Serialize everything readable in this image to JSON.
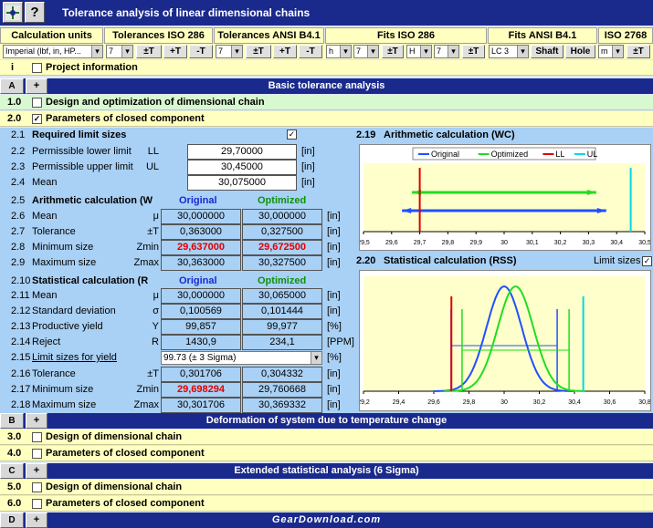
{
  "app": {
    "title": "Tolerance analysis of linear dimensional chains"
  },
  "toolbar": {
    "tabs": [
      "Calculation units",
      "Tolerances ISO 286",
      "Tolerances ANSI B4.1",
      "Fits ISO 286",
      "Fits ANSI B4.1",
      "ISO 2768"
    ],
    "units_value": "Imperial (lbf, in, HP...",
    "iso_grade": "7",
    "ansi_grade": "7",
    "fit_h": "h",
    "fit_7a": "7",
    "fit_H": "H",
    "fit_7b": "7",
    "lc": "LC 3",
    "iso2768": "m",
    "pmT": "±T",
    "plusT": "+T",
    "minusT": "-T",
    "shaft": "Shaft",
    "hole": "Hole"
  },
  "sections": {
    "i_label": "i",
    "project": "Project information",
    "A": "A",
    "A_title": "Basic tolerance analysis",
    "g10_num": "1.0",
    "g10": "Design and optimization of dimensional chain",
    "g20_num": "2.0",
    "g20": "Parameters of closed component",
    "B": "B",
    "B_title": "Deformation of system due to temperature change",
    "g30_num": "3.0",
    "g30": "Design of dimensional chain",
    "g40_num": "4.0",
    "g40": "Parameters of closed component",
    "C": "C",
    "C_title": "Extended statistical analysis (6 Sigma)",
    "g50_num": "5.0",
    "g50": "Design of dimensional chain",
    "g60_num": "6.0",
    "g60": "Parameters of closed component",
    "D": "D",
    "plus": "+",
    "watermark": "GearDownload.com"
  },
  "limits": {
    "head_num": "2.1",
    "head": "Required limit sizes",
    "rows": [
      {
        "n": "2.2",
        "d": "Permissible lower limit",
        "s": "LL",
        "v": "29,70000",
        "u": "[in]"
      },
      {
        "n": "2.3",
        "d": "Permissible upper limit",
        "s": "UL",
        "v": "30,45000",
        "u": "[in]"
      },
      {
        "n": "2.4",
        "d": "Mean",
        "s": "",
        "v": "30,075000",
        "u": "[in]"
      }
    ]
  },
  "arith": {
    "head_num": "2.5",
    "head": "Arithmetic calculation (W",
    "orig": "Original",
    "opt": "Optimized",
    "rows": [
      {
        "n": "2.6",
        "d": "Mean",
        "s": "μ",
        "a": "30,000000",
        "b": "30,000000",
        "u": "[in]"
      },
      {
        "n": "2.7",
        "d": "Tolerance",
        "s": "±T",
        "a": "0,363000",
        "b": "0,327500",
        "u": "[in]"
      },
      {
        "n": "2.8",
        "d": "Minimum size",
        "s": "Zmin",
        "a": "29,637000",
        "b": "29,672500",
        "u": "[in]"
      },
      {
        "n": "2.9",
        "d": "Maximum size",
        "s": "Zmax",
        "a": "30,363000",
        "b": "30,327500",
        "u": "[in]"
      }
    ]
  },
  "stat": {
    "head_num": "2.10",
    "head": "Statistical calculation (R",
    "orig": "Original",
    "opt": "Optimized",
    "rows": [
      {
        "n": "2.11",
        "d": "Mean",
        "s": "μ",
        "a": "30,000000",
        "b": "30,065000",
        "u": "[in]"
      },
      {
        "n": "2.12",
        "d": "Standard deviation",
        "s": "σ",
        "a": "0,100569",
        "b": "0,101444",
        "u": "[in]"
      },
      {
        "n": "2.13",
        "d": "Productive yield",
        "s": "Y",
        "a": "99,857",
        "b": "99,977",
        "u": "[%]"
      },
      {
        "n": "2.14",
        "d": "Reject",
        "s": "R",
        "a": "1430,9",
        "b": "234,1",
        "u": "[PPM]"
      }
    ],
    "yield_num": "2.15",
    "yield_label": "Limit sizes for yield",
    "yield_value": "99.73  (± 3 Sigma)",
    "yield_unit": "[%]",
    "rows2": [
      {
        "n": "2.16",
        "d": "Tolerance",
        "s": "±T",
        "a": "0,301706",
        "b": "0,304332",
        "u": "[in]"
      },
      {
        "n": "2.17",
        "d": "Minimum size",
        "s": "Zmin",
        "a": "29,698294",
        "b": "29,760668",
        "u": "[in]"
      },
      {
        "n": "2.18",
        "d": "Maximum size",
        "s": "Zmax",
        "a": "30,301706",
        "b": "30,369332",
        "u": "[in]"
      }
    ]
  },
  "chart_data": [
    {
      "type": "line",
      "num": "2.19",
      "title": "Arithmetic calculation (WC)",
      "legend": [
        "Original",
        "Optimized",
        "LL",
        "UL"
      ],
      "colors": {
        "Original": "#2050ff",
        "Optimized": "#20dd20",
        "LL": "#e00000",
        "UL": "#00d8e8"
      },
      "xlim": [
        29.5,
        30.5
      ],
      "ticks": [
        "29,5",
        "29,6",
        "29,7",
        "29,8",
        "29,9",
        "30",
        "30,1",
        "30,2",
        "30,3",
        "30,4",
        "30,5"
      ],
      "series": [
        {
          "name": "Original",
          "range": [
            29.637,
            30.363
          ]
        },
        {
          "name": "Optimized",
          "range": [
            29.6725,
            30.3275
          ]
        }
      ],
      "LL": 29.7,
      "UL": 30.45
    },
    {
      "type": "line",
      "num": "2.20",
      "title": "Statistical calculation (RSS)",
      "limit_label": "Limit sizes",
      "xlim": [
        29.2,
        30.8
      ],
      "ticks": [
        "29,2",
        "29,4",
        "29,6",
        "29,8",
        "30",
        "30,2",
        "30,4",
        "30,6",
        "30,8"
      ],
      "series": [
        {
          "name": "Original",
          "mean": 30.0,
          "sd": 0.100569,
          "range": [
            29.698294,
            30.301706
          ]
        },
        {
          "name": "Optimized",
          "mean": 30.065,
          "sd": 0.101444,
          "range": [
            29.760668,
            30.369332
          ]
        }
      ],
      "LL": 29.7,
      "UL": 30.45
    }
  ]
}
